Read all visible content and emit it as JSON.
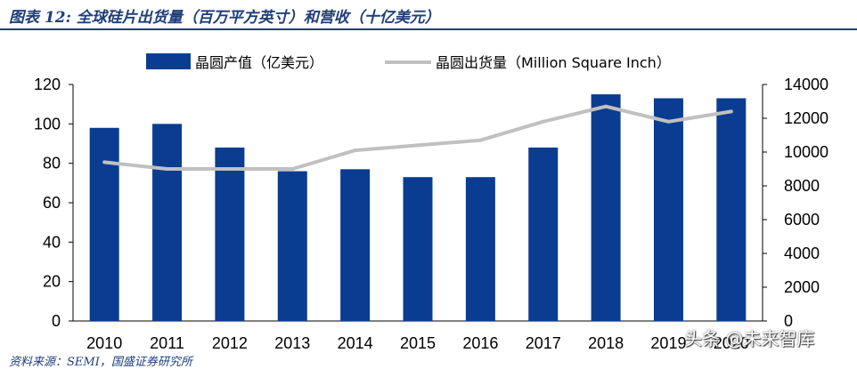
{
  "title": "图表 12:  全球硅片出货量（百万平方英寸）和营收（十亿美元）",
  "source_text": "资料来源：SEMI，国盛证券研究所",
  "watermark": "头条 @未来智库",
  "colors": {
    "bar": "#0a3d91",
    "line": "#c0c0c0",
    "title": "#1f3d7a"
  },
  "chart_data": {
    "type": "bar+line",
    "categories": [
      "2010",
      "2011",
      "2012",
      "2013",
      "2014",
      "2015",
      "2016",
      "2017",
      "2018",
      "2019",
      "2020"
    ],
    "series": [
      {
        "name": "晶圆产值（亿美元）",
        "type": "bar",
        "axis": "left",
        "values": [
          98,
          100,
          88,
          76,
          77,
          73,
          73,
          88,
          115,
          113,
          113
        ]
      },
      {
        "name": "晶圆出货量（Million Square Inch）",
        "type": "line",
        "axis": "right",
        "values": [
          9400,
          9000,
          9000,
          9000,
          10100,
          10400,
          10700,
          11800,
          12700,
          11800,
          12400
        ]
      }
    ],
    "y_left": {
      "min": 0,
      "max": 120,
      "ticks": [
        "0",
        "20",
        "40",
        "60",
        "80",
        "100",
        "120"
      ]
    },
    "y_right": {
      "min": 0,
      "max": 14000,
      "ticks": [
        "0",
        "2000",
        "4000",
        "6000",
        "8000",
        "10000",
        "12000",
        "14000"
      ]
    },
    "legend_position": "top",
    "grid": false
  }
}
